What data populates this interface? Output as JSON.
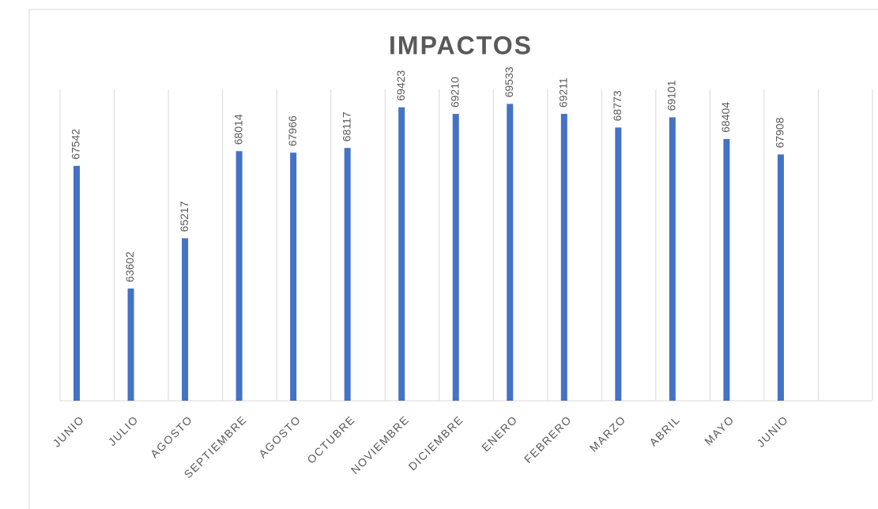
{
  "chart_data": {
    "type": "bar",
    "title": "IMPACTOS",
    "categories": [
      "JUNIO",
      "JULIO",
      "AGOSTO",
      "SEPTIEMBRE",
      "AGOSTO",
      "OCTUBRE",
      "NOVIEMBRE",
      "DICIEMBRE",
      "ENERO",
      "FEBRERO",
      "MARZO",
      "ABRIL",
      "MAYO",
      "JUNIO",
      null
    ],
    "values": [
      67542,
      63602,
      65217,
      68014,
      67966,
      68117,
      69423,
      69210,
      69533,
      69211,
      68773,
      69101,
      68404,
      67908,
      null
    ],
    "color": "#4472c4",
    "ylim": [
      60000,
      70000
    ],
    "grid": true
  }
}
